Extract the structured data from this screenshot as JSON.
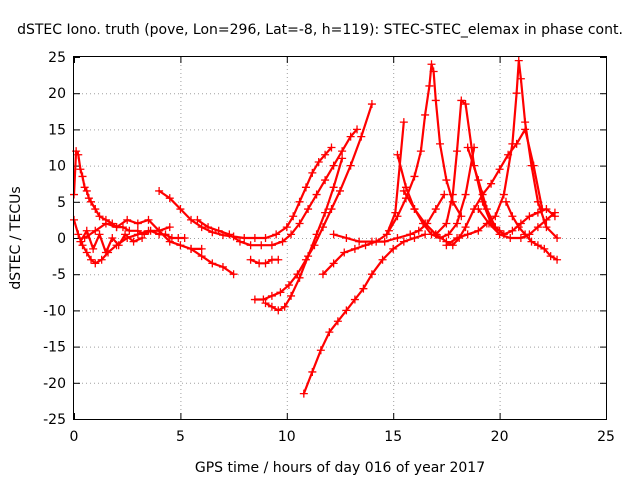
{
  "chart_data": {
    "type": "scatter",
    "title": "dSTEC Iono. truth (pove, Lon=296, Lat=-8, h=119): STEC-STEC_elemax in phase cont.",
    "xlabel": "GPS time / hours of day 016 of year 2017",
    "ylabel": "dSTEC  / TECUs",
    "xlim": [
      0,
      25
    ],
    "ylim": [
      -25,
      25
    ],
    "xticks": [
      0,
      5,
      10,
      15,
      20,
      25
    ],
    "yticks": [
      -25,
      -20,
      -15,
      -10,
      -5,
      0,
      5,
      10,
      15,
      20,
      25
    ],
    "grid": true,
    "marker": "plus",
    "color": "#ff0000",
    "series": [
      {
        "x": [
          0.0,
          0.1,
          0.2,
          0.3,
          0.4,
          0.5,
          0.6,
          0.7,
          0.8,
          1.0,
          1.2,
          1.5,
          1.8,
          2.0,
          2.3,
          2.6,
          3.0,
          3.3,
          3.6,
          4.0,
          4.3,
          4.6,
          4.9,
          5.2
        ],
        "y": [
          6.0,
          12.0,
          11.5,
          9.5,
          8.5,
          7.0,
          6.5,
          5.5,
          5.0,
          4.0,
          3.0,
          2.5,
          2.0,
          1.5,
          1.5,
          1.0,
          1.0,
          0.5,
          1.0,
          0.5,
          0.5,
          0.0,
          0.0,
          0.0
        ]
      },
      {
        "x": [
          0.0,
          0.2,
          0.4,
          0.6,
          0.8,
          1.0,
          1.3,
          1.6,
          2.0,
          2.5,
          3.0,
          3.5,
          4.0,
          4.5
        ],
        "y": [
          2.5,
          0.5,
          -1.0,
          -2.0,
          -3.0,
          -3.5,
          -3.0,
          -2.0,
          -1.0,
          0.0,
          0.5,
          1.0,
          1.0,
          1.5
        ]
      },
      {
        "x": [
          0.5,
          1.0,
          1.5,
          2.0,
          2.5,
          3.0,
          3.5,
          4.0,
          4.5,
          5.0,
          5.5,
          6.0
        ],
        "y": [
          0.0,
          1.0,
          2.0,
          1.5,
          2.5,
          2.0,
          2.5,
          1.0,
          -0.5,
          -1.0,
          -1.5,
          -1.5
        ]
      },
      {
        "x": [
          0.3,
          0.6,
          0.9,
          1.2,
          1.5,
          1.8,
          2.1,
          2.4,
          2.8,
          3.2
        ],
        "y": [
          -0.5,
          1.0,
          -1.5,
          0.5,
          -2.0,
          0.0,
          -1.0,
          0.5,
          -0.5,
          0.0
        ]
      },
      {
        "x": [
          4.0,
          4.5,
          5.0,
          5.5,
          6.0,
          6.5,
          7.0,
          7.5,
          8.0,
          8.5,
          9.0,
          9.5,
          10.0,
          10.3,
          10.6,
          10.9,
          11.2,
          11.5,
          11.8,
          12.1
        ],
        "y": [
          6.5,
          5.5,
          4.0,
          2.5,
          1.5,
          0.8,
          0.4,
          0.2,
          0.0,
          0.0,
          0.0,
          0.5,
          1.5,
          3.0,
          5.0,
          7.0,
          9.0,
          10.5,
          11.5,
          12.5
        ]
      },
      {
        "x": [
          5.8,
          6.3,
          6.8,
          7.3,
          7.8,
          8.3,
          8.8,
          9.3,
          9.8,
          10.2,
          10.6,
          11.0,
          11.4,
          11.8,
          12.2,
          12.6,
          13.0,
          13.3
        ],
        "y": [
          2.5,
          1.5,
          1.0,
          0.5,
          -0.5,
          -1.0,
          -1.0,
          -1.0,
          -0.5,
          0.5,
          2.0,
          4.0,
          6.0,
          8.0,
          10.0,
          12.0,
          14.0,
          15.0
        ]
      },
      {
        "x": [
          5.5,
          6.0,
          6.5,
          7.0,
          7.5
        ],
        "y": [
          -1.5,
          -2.5,
          -3.5,
          -4.0,
          -5.0
        ]
      },
      {
        "x": [
          8.3,
          8.7,
          9.0,
          9.3,
          9.6
        ],
        "y": [
          -3.0,
          -3.5,
          -3.5,
          -3.0,
          -3.0
        ]
      },
      {
        "x": [
          8.5,
          8.9,
          9.3,
          9.7,
          10.1,
          10.5,
          10.9,
          11.3,
          11.7,
          12.1,
          12.5,
          13.0,
          13.5,
          14.0
        ],
        "y": [
          -8.5,
          -8.5,
          -8.0,
          -7.5,
          -6.5,
          -5.0,
          -3.0,
          -1.0,
          1.5,
          4.0,
          6.5,
          10.0,
          14.0,
          18.5
        ]
      },
      {
        "x": [
          9.0,
          9.3,
          9.6,
          9.9,
          10.2,
          10.6,
          11.0,
          11.4,
          11.8,
          12.2,
          12.6
        ],
        "y": [
          -9.0,
          -9.5,
          -10.0,
          -9.5,
          -8.0,
          -5.5,
          -2.5,
          0.5,
          3.5,
          7.0,
          11.0
        ]
      },
      {
        "x": [
          10.8,
          11.2,
          11.6,
          12.0,
          12.4,
          12.8,
          13.2,
          13.6,
          14.0,
          14.5,
          15.0,
          15.5,
          16.0,
          16.5
        ],
        "y": [
          -21.5,
          -18.5,
          -15.5,
          -13.0,
          -11.5,
          -10.0,
          -8.5,
          -7.0,
          -5.0,
          -3.0,
          -1.5,
          -0.5,
          0.0,
          0.5
        ]
      },
      {
        "x": [
          11.7,
          12.2,
          12.7,
          13.2,
          13.7,
          14.2,
          14.7,
          15.1,
          15.5
        ],
        "y": [
          -5.0,
          -3.5,
          -2.0,
          -1.5,
          -1.0,
          -0.5,
          0.5,
          3.5,
          16.0
        ]
      },
      {
        "x": [
          12.2,
          12.8,
          13.4,
          14.0,
          14.6,
          15.2,
          15.8,
          16.2,
          16.6,
          17.0,
          17.4
        ],
        "y": [
          0.5,
          0.0,
          -0.5,
          -0.5,
          -0.5,
          0.0,
          0.5,
          1.0,
          2.0,
          4.0,
          6.0
        ]
      },
      {
        "x": [
          14.8,
          15.2,
          15.6,
          16.0,
          16.3,
          16.5,
          16.7,
          16.8,
          16.9,
          17.0,
          17.2,
          17.5,
          17.8,
          18.2
        ],
        "y": [
          1.0,
          3.0,
          5.5,
          8.5,
          12.0,
          17.0,
          21.0,
          24.0,
          23.0,
          19.0,
          13.0,
          8.0,
          5.0,
          3.0
        ]
      },
      {
        "x": [
          15.2,
          15.6,
          16.0,
          16.4,
          16.8,
          17.2,
          17.6,
          18.0,
          18.4,
          18.8
        ],
        "y": [
          11.5,
          7.0,
          4.0,
          2.0,
          0.5,
          0.0,
          0.5,
          2.0,
          6.0,
          12.5
        ]
      },
      {
        "x": [
          15.5,
          16.0,
          16.5,
          17.0,
          17.5,
          17.8,
          18.0,
          18.2,
          18.4,
          18.8,
          19.2,
          19.6,
          20.0
        ],
        "y": [
          6.5,
          4.0,
          2.0,
          0.5,
          2.0,
          6.0,
          12.0,
          19.0,
          18.5,
          10.0,
          5.0,
          2.0,
          1.0
        ]
      },
      {
        "x": [
          16.5,
          17.0,
          17.5,
          17.8,
          18.1,
          18.4,
          18.8,
          19.2,
          19.6,
          20.0,
          20.4,
          20.8,
          21.2,
          21.6,
          22.0
        ],
        "y": [
          2.0,
          0.5,
          -0.5,
          -1.0,
          0.0,
          1.5,
          4.0,
          6.0,
          7.5,
          9.5,
          11.5,
          13.0,
          15.0,
          10.0,
          4.0
        ]
      },
      {
        "x": [
          17.5,
          18.0,
          18.5,
          19.0,
          19.4,
          19.8,
          20.2,
          20.6,
          20.8,
          20.9,
          21.0,
          21.2,
          21.5,
          21.8,
          22.2,
          22.7
        ],
        "y": [
          -1.0,
          0.0,
          0.5,
          1.0,
          2.0,
          3.0,
          6.0,
          13.0,
          20.0,
          24.5,
          22.0,
          16.0,
          10.0,
          5.0,
          1.5,
          0.0
        ]
      },
      {
        "x": [
          18.5,
          19.0,
          19.4,
          19.8,
          20.2,
          20.6,
          21.0,
          21.4,
          21.8,
          22.2,
          22.6
        ],
        "y": [
          12.5,
          8.0,
          4.0,
          1.5,
          0.5,
          1.0,
          2.0,
          3.0,
          3.5,
          4.0,
          3.0
        ]
      },
      {
        "x": [
          19.0,
          19.5,
          20.0,
          20.5,
          21.0,
          21.4,
          21.8,
          22.2,
          22.6
        ],
        "y": [
          4.0,
          2.0,
          0.5,
          0.0,
          0.0,
          0.5,
          1.5,
          2.5,
          3.5
        ]
      },
      {
        "x": [
          20.3,
          20.6,
          20.9,
          21.2,
          21.5,
          21.8,
          22.1,
          22.4,
          22.7
        ],
        "y": [
          5.0,
          3.0,
          1.5,
          0.5,
          -0.5,
          -1.0,
          -1.5,
          -2.5,
          -3.0
        ]
      }
    ]
  }
}
